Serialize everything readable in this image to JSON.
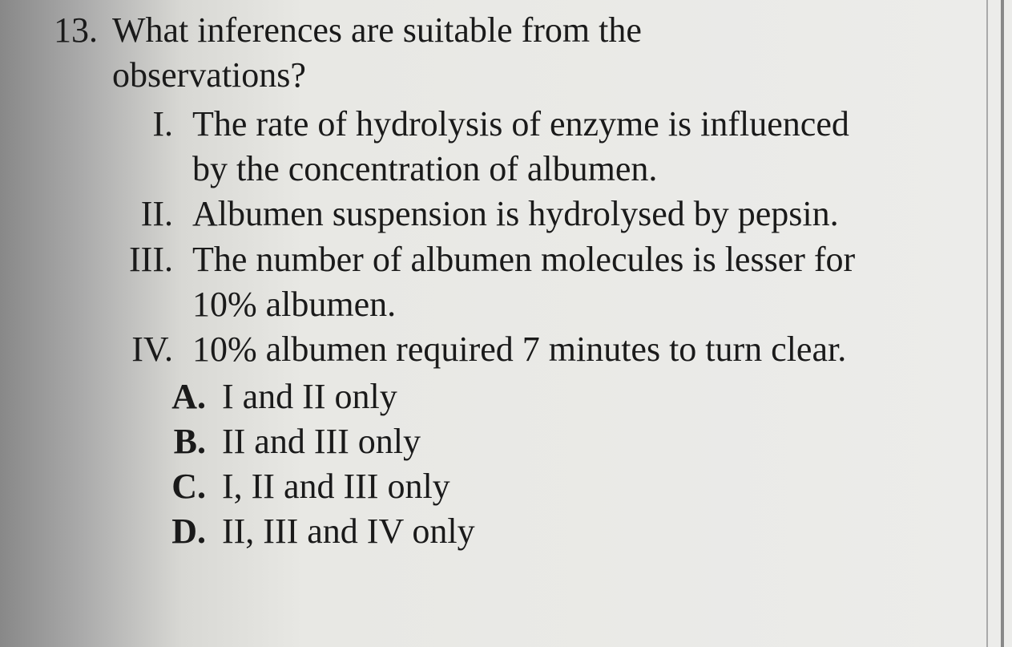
{
  "question": {
    "number": "13.",
    "text_line1": "What inferences are suitable from the",
    "text_line2": "observations?"
  },
  "romans": [
    {
      "marker": "I.",
      "line1": "The rate of hydrolysis of enzyme is influenced",
      "line2": "by the concentration of albumen."
    },
    {
      "marker": "II.",
      "line1": "Albumen suspension is hydrolysed by pepsin."
    },
    {
      "marker": "III.",
      "line1": "The number of albumen molecules is lesser for",
      "line2": "10% albumen."
    },
    {
      "marker": "IV.",
      "line1": "10% albumen required 7 minutes to turn clear."
    }
  ],
  "options": [
    {
      "marker": "A.",
      "text": "I and II only"
    },
    {
      "marker": "B.",
      "text": "II and III only"
    },
    {
      "marker": "C.",
      "text": "I, II and III only"
    },
    {
      "marker": "D.",
      "text": "II, III and IV only"
    }
  ]
}
